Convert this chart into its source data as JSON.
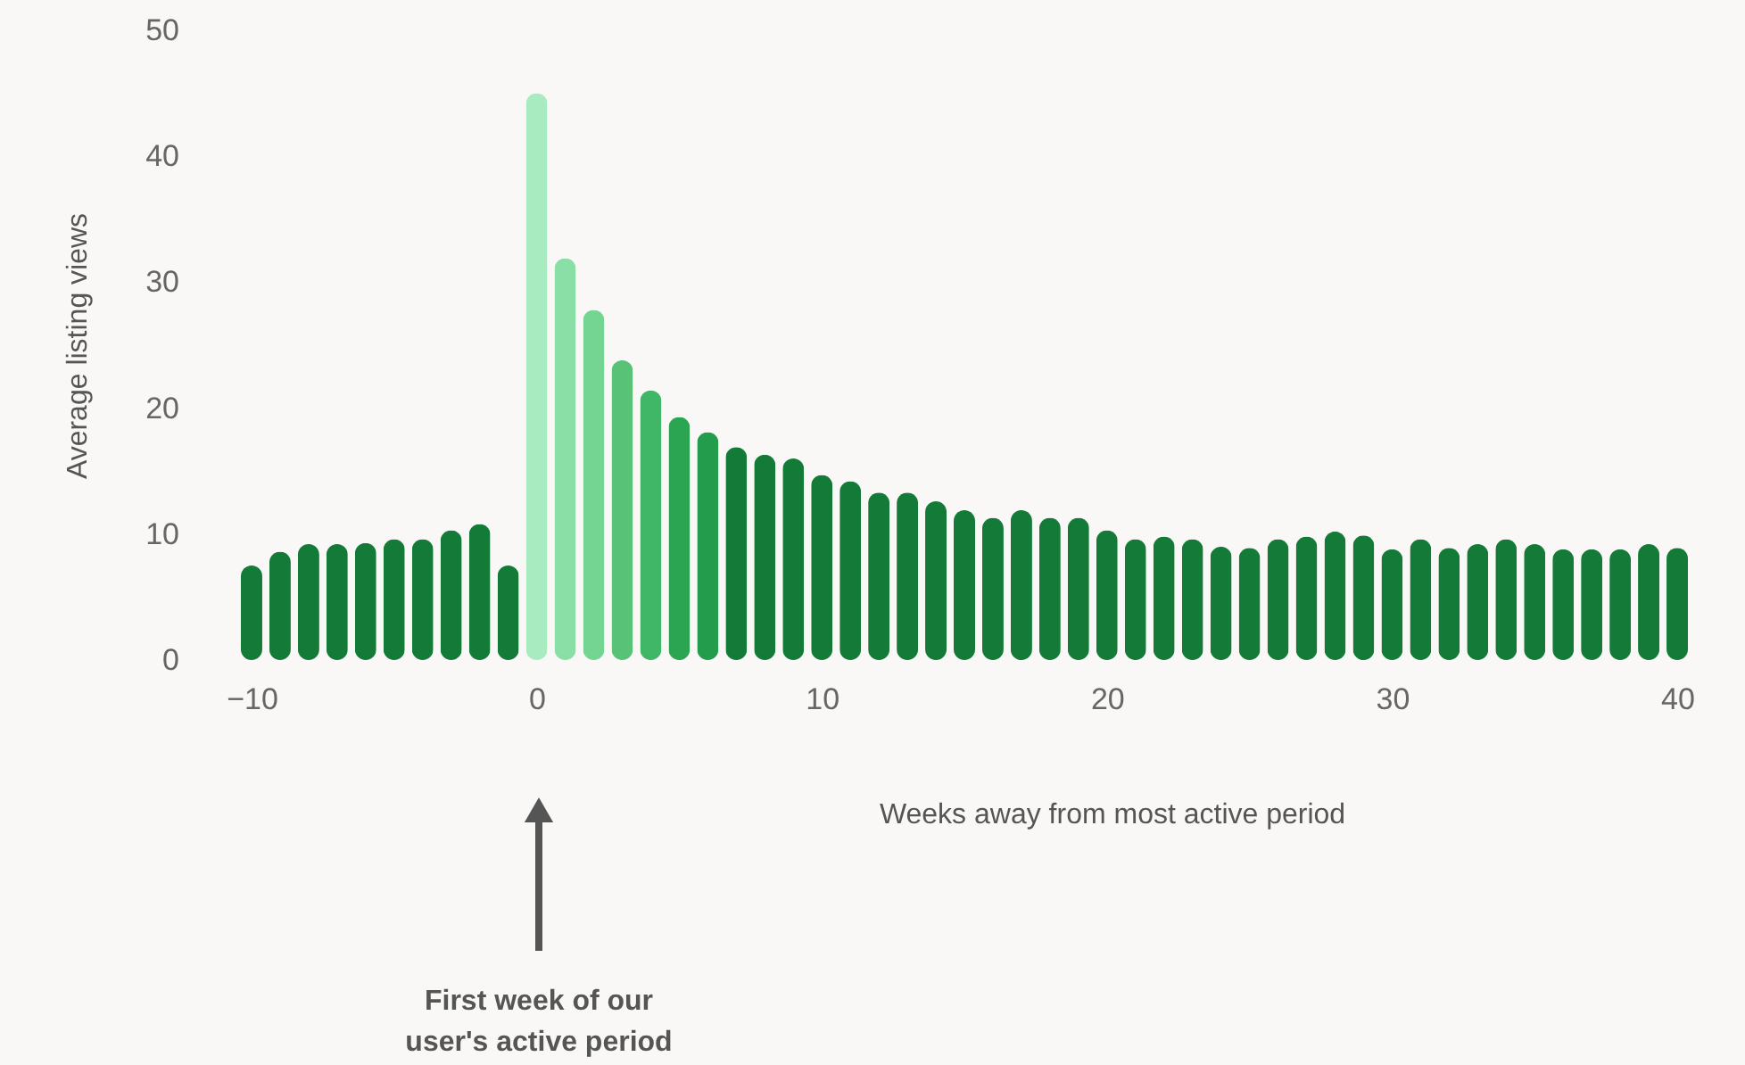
{
  "chart_data": {
    "type": "bar",
    "xlabel": "Weeks away from most active period",
    "ylabel": "Average listing views",
    "x": [
      -10,
      -9,
      -8,
      -7,
      -6,
      -5,
      -4,
      -3,
      -2,
      -1,
      0,
      1,
      2,
      3,
      4,
      5,
      6,
      7,
      8,
      9,
      10,
      11,
      12,
      13,
      14,
      15,
      16,
      17,
      18,
      19,
      20,
      21,
      22,
      23,
      24,
      25,
      26,
      27,
      28,
      29,
      30,
      31,
      32,
      33,
      34,
      35,
      36,
      37,
      38,
      39,
      40
    ],
    "values": [
      7.5,
      8.6,
      9.2,
      9.2,
      9.3,
      9.6,
      9.6,
      10.3,
      10.8,
      7.5,
      45,
      31.9,
      27.8,
      23.8,
      21.4,
      19.3,
      18.1,
      16.9,
      16.3,
      16.0,
      14.7,
      14.2,
      13.3,
      13.3,
      12.6,
      11.9,
      11.3,
      11.9,
      11.3,
      11.3,
      10.3,
      9.6,
      9.8,
      9.6,
      9.0,
      8.9,
      9.6,
      9.8,
      10.2,
      9.9,
      8.8,
      9.6,
      8.9,
      9.2,
      9.6,
      9.2,
      8.8,
      8.8,
      8.8,
      9.2,
      8.9
    ],
    "colors": [
      "#137a38",
      "#137a38",
      "#137a38",
      "#137a38",
      "#137a38",
      "#137a38",
      "#137a38",
      "#137a38",
      "#137a38",
      "#137a38",
      "#a8ebc0",
      "#8adfa6",
      "#74d491",
      "#58c377",
      "#40b766",
      "#2ca553",
      "#239c4c",
      "#137a38",
      "#137a38",
      "#137a38",
      "#137a38",
      "#137a38",
      "#137a38",
      "#137a38",
      "#137a38",
      "#137a38",
      "#137a38",
      "#137a38",
      "#137a38",
      "#137a38",
      "#137a38",
      "#137a38",
      "#137a38",
      "#137a38",
      "#137a38",
      "#137a38",
      "#137a38",
      "#137a38",
      "#137a38",
      "#137a38",
      "#137a38",
      "#137a38",
      "#137a38",
      "#137a38",
      "#137a38",
      "#137a38",
      "#137a38",
      "#137a38",
      "#137a38",
      "#137a38",
      "#137a38"
    ],
    "xlim": [
      -10.5,
      40.5
    ],
    "xticks": [
      -10,
      0,
      10,
      20,
      30,
      40
    ],
    "ylim": [
      0,
      50
    ],
    "yticks": [
      0,
      10,
      20,
      30,
      40,
      50
    ],
    "grid": false,
    "annotations": [
      "First week of our user's active period"
    ]
  }
}
